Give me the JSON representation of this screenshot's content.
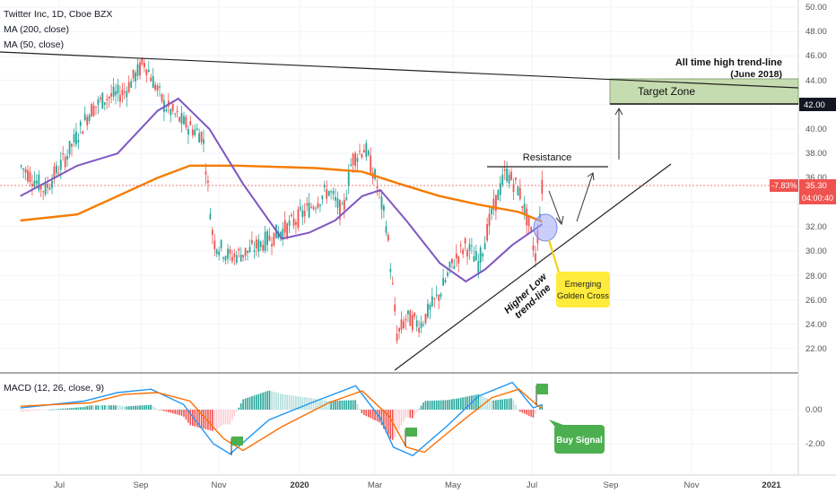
{
  "header": {
    "symbol_line": "Twitter Inc, 1D, Cboe BZX",
    "ma200_label": "MA (200, close)",
    "ma50_label": "MA (50, close)"
  },
  "macd_label": "MACD (12, 26, close, 9)",
  "x_axis": {
    "ticks": [
      "Jul",
      "Sep",
      "Nov",
      "2020",
      "Mar",
      "May",
      "Jul",
      "Sep",
      "Nov",
      "2021"
    ]
  },
  "price_axis": {
    "ticks": [
      "50.00",
      "48.00",
      "46.00",
      "44.00",
      "42.00",
      "40.00",
      "38.00",
      "36.00",
      "34.00",
      "32.00",
      "30.00",
      "28.00",
      "26.00",
      "24.00",
      "22.00"
    ],
    "highlight_price": "42.00",
    "current_change": "-7.83%",
    "current_price": "35.30",
    "countdown": "04:00:40"
  },
  "macd_axis": {
    "ticks": [
      "0.00",
      "-2.00"
    ]
  },
  "annotations": {
    "ath_line_1": "All time high trend-line",
    "ath_line_2": "(June 2018)",
    "target_zone": "Target Zone",
    "resistance": "Resistance",
    "higher_low_1": "Higher Low",
    "higher_low_2": "trend-line",
    "golden_cross_1": "Emerging",
    "golden_cross_2": "Golden Cross",
    "buy_signal": "Buy Signal"
  },
  "colors": {
    "up_candle": "#26a69a",
    "down_candle": "#ef5350",
    "ma50": "#7e57c2",
    "ma200": "#f57c00",
    "macd_line": "#2196f3",
    "signal_line": "#ff6d00",
    "target_zone_fill": "#c5dcb0",
    "callout_yellow": "#ffeb3b",
    "callout_green": "#4caf50",
    "price_tag_red": "#ef5350"
  },
  "chart_data": {
    "type": "candlestick",
    "title": "Twitter Inc, 1D, Cboe BZX",
    "ylim": [
      20,
      50
    ],
    "price_path": [
      [
        "2019-06-01",
        37.0
      ],
      [
        "2019-06-20",
        35.0
      ],
      [
        "2019-07-05",
        37.5
      ],
      [
        "2019-07-25",
        41.5
      ],
      [
        "2019-08-05",
        42.5
      ],
      [
        "2019-08-20",
        43.0
      ],
      [
        "2019-09-05",
        45.5
      ],
      [
        "2019-09-20",
        42.0
      ],
      [
        "2019-10-05",
        40.5
      ],
      [
        "2019-10-20",
        39.5
      ],
      [
        "2019-10-28",
        30.8
      ],
      [
        "2019-11-10",
        29.5
      ],
      [
        "2019-11-25",
        30.0
      ],
      [
        "2019-12-10",
        31.0
      ],
      [
        "2019-12-25",
        32.0
      ],
      [
        "2020-01-10",
        33.5
      ],
      [
        "2020-01-25",
        35.0
      ],
      [
        "2020-02-05",
        33.0
      ],
      [
        "2020-02-12",
        37.5
      ],
      [
        "2020-02-22",
        38.5
      ],
      [
        "2020-03-01",
        36.0
      ],
      [
        "2020-03-10",
        32.0
      ],
      [
        "2020-03-18",
        23.0
      ],
      [
        "2020-03-25",
        24.5
      ],
      [
        "2020-04-05",
        24.0
      ],
      [
        "2020-04-20",
        26.5
      ],
      [
        "2020-04-30",
        29.0
      ],
      [
        "2020-05-10",
        30.5
      ],
      [
        "2020-05-20",
        29.0
      ],
      [
        "2020-05-30",
        33.0
      ],
      [
        "2020-06-10",
        36.5
      ],
      [
        "2020-06-20",
        35.0
      ],
      [
        "2020-06-28",
        32.0
      ],
      [
        "2020-07-03",
        29.5
      ],
      [
        "2020-07-08",
        35.3
      ]
    ],
    "ma50": [
      [
        "2019-06-01",
        34.5
      ],
      [
        "2019-07-15",
        37.0
      ],
      [
        "2019-08-15",
        38.0
      ],
      [
        "2019-09-15",
        41.5
      ],
      [
        "2019-10-01",
        42.5
      ],
      [
        "2019-10-25",
        40.0
      ],
      [
        "2019-11-20",
        35.5
      ],
      [
        "2019-12-20",
        31.0
      ],
      [
        "2020-01-10",
        31.5
      ],
      [
        "2020-01-30",
        32.5
      ],
      [
        "2020-02-20",
        34.5
      ],
      [
        "2020-03-05",
        35.0
      ],
      [
        "2020-03-25",
        32.5
      ],
      [
        "2020-04-20",
        29.0
      ],
      [
        "2020-05-10",
        27.5
      ],
      [
        "2020-05-25",
        28.5
      ],
      [
        "2020-06-15",
        30.5
      ],
      [
        "2020-07-08",
        32.2
      ]
    ],
    "ma200": [
      [
        "2019-06-01",
        32.5
      ],
      [
        "2019-07-15",
        33.0
      ],
      [
        "2019-08-15",
        34.5
      ],
      [
        "2019-09-15",
        36.0
      ],
      [
        "2019-10-10",
        37.0
      ],
      [
        "2019-11-15",
        37.0
      ],
      [
        "2020-01-15",
        36.8
      ],
      [
        "2020-02-20",
        36.5
      ],
      [
        "2020-03-20",
        35.5
      ],
      [
        "2020-04-20",
        34.5
      ],
      [
        "2020-05-20",
        33.8
      ],
      [
        "2020-06-20",
        33.2
      ],
      [
        "2020-07-08",
        32.4
      ]
    ],
    "macd_ylim": [
      -3,
      2
    ],
    "macd_line": [
      [
        "2019-06-01",
        0.1
      ],
      [
        "2019-07-20",
        0.5
      ],
      [
        "2019-08-15",
        1.0
      ],
      [
        "2019-09-10",
        1.2
      ],
      [
        "2019-10-05",
        0.3
      ],
      [
        "2019-10-28",
        -2.0
      ],
      [
        "2019-11-10",
        -2.6
      ],
      [
        "2019-12-10",
        -0.6
      ],
      [
        "2020-01-15",
        0.5
      ],
      [
        "2020-02-15",
        1.4
      ],
      [
        "2020-03-05",
        -0.5
      ],
      [
        "2020-03-15",
        -2.2
      ],
      [
        "2020-03-30",
        -2.7
      ],
      [
        "2020-04-25",
        -1.0
      ],
      [
        "2020-05-20",
        0.8
      ],
      [
        "2020-06-15",
        1.6
      ],
      [
        "2020-07-01",
        0.1
      ],
      [
        "2020-07-08",
        0.3
      ]
    ],
    "signal_line": [
      [
        "2019-06-01",
        0.2
      ],
      [
        "2019-07-25",
        0.4
      ],
      [
        "2019-08-20",
        0.9
      ],
      [
        "2019-09-15",
        1.0
      ],
      [
        "2019-10-10",
        0.5
      ],
      [
        "2019-11-05",
        -1.7
      ],
      [
        "2019-11-20",
        -2.4
      ],
      [
        "2019-12-20",
        -1.0
      ],
      [
        "2020-01-25",
        0.4
      ],
      [
        "2020-02-20",
        1.1
      ],
      [
        "2020-03-12",
        -0.4
      ],
      [
        "2020-03-25",
        -2.2
      ],
      [
        "2020-04-08",
        -2.5
      ],
      [
        "2020-05-05",
        -0.8
      ],
      [
        "2020-05-30",
        0.7
      ],
      [
        "2020-06-20",
        1.2
      ],
      [
        "2020-07-05",
        0.2
      ],
      [
        "2020-07-08",
        0.1
      ]
    ]
  }
}
